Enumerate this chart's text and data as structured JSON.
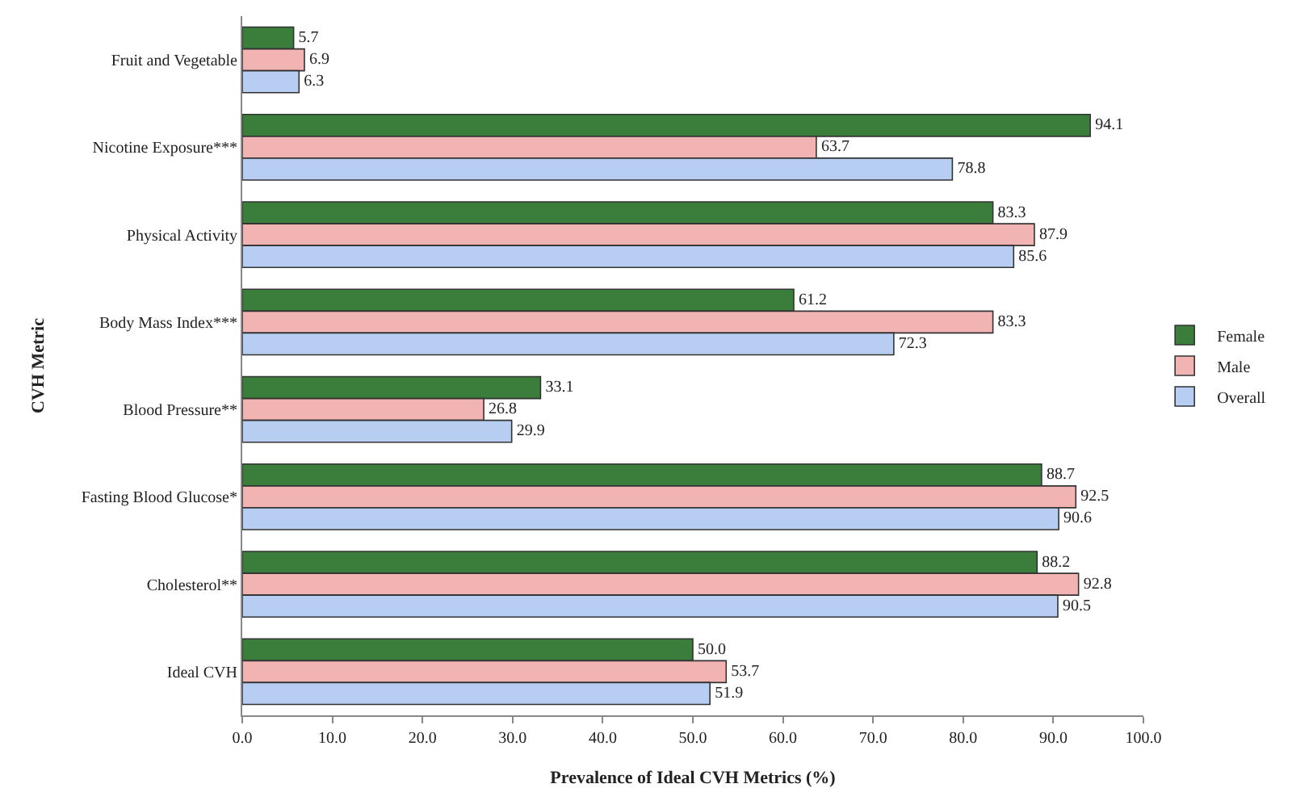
{
  "chart_data": {
    "type": "bar",
    "orientation": "horizontal",
    "xlabel": "Prevalence of Ideal CVH Metrics (%)",
    "ylabel": "CVH Metric",
    "categories": [
      "Fruit and Vegetable",
      "Nicotine Exposure***",
      "Physical Activity",
      "Body Mass Index***",
      "Blood Pressure**",
      "Fasting Blood Glucose*",
      "Cholesterol**",
      "Ideal CVH"
    ],
    "series": [
      {
        "name": "Female",
        "color": "#3b7d3b",
        "values": [
          5.7,
          94.1,
          83.3,
          61.2,
          33.1,
          88.7,
          88.2,
          50.0
        ],
        "value_labels": [
          "5.7",
          "94.1",
          "83.3",
          "61.2",
          "33.1",
          "88.7",
          "88.2",
          "50.0"
        ]
      },
      {
        "name": "Male",
        "color": "#f2b3b3",
        "values": [
          6.9,
          63.7,
          87.9,
          83.3,
          26.8,
          92.5,
          92.8,
          53.7
        ],
        "value_labels": [
          "6.9",
          "63.7",
          "87.9",
          "83.3",
          "26.8",
          "92.5",
          "92.8",
          "53.7"
        ]
      },
      {
        "name": "Overall",
        "color": "#b7cdf2",
        "values": [
          6.3,
          78.8,
          85.6,
          72.3,
          29.9,
          90.6,
          90.5,
          51.9
        ],
        "value_labels": [
          "6.3",
          "78.8",
          "85.6",
          "72.3",
          "29.9",
          "90.6",
          "90.5",
          "51.9"
        ]
      }
    ],
    "xlim": [
      0,
      100
    ],
    "xticks": [
      {
        "value": 0,
        "label": "0.0"
      },
      {
        "value": 10,
        "label": "10.0"
      },
      {
        "value": 20,
        "label": "20.0"
      },
      {
        "value": 30,
        "label": "30.0"
      },
      {
        "value": 40,
        "label": "40.0"
      },
      {
        "value": 50,
        "label": "50.0"
      },
      {
        "value": 60,
        "label": "60.0"
      },
      {
        "value": 70,
        "label": "70.0"
      },
      {
        "value": 80,
        "label": "80.0"
      },
      {
        "value": 90,
        "label": "90.0"
      },
      {
        "value": 100,
        "label": "100.0"
      }
    ],
    "grid": false,
    "legend": "right"
  }
}
